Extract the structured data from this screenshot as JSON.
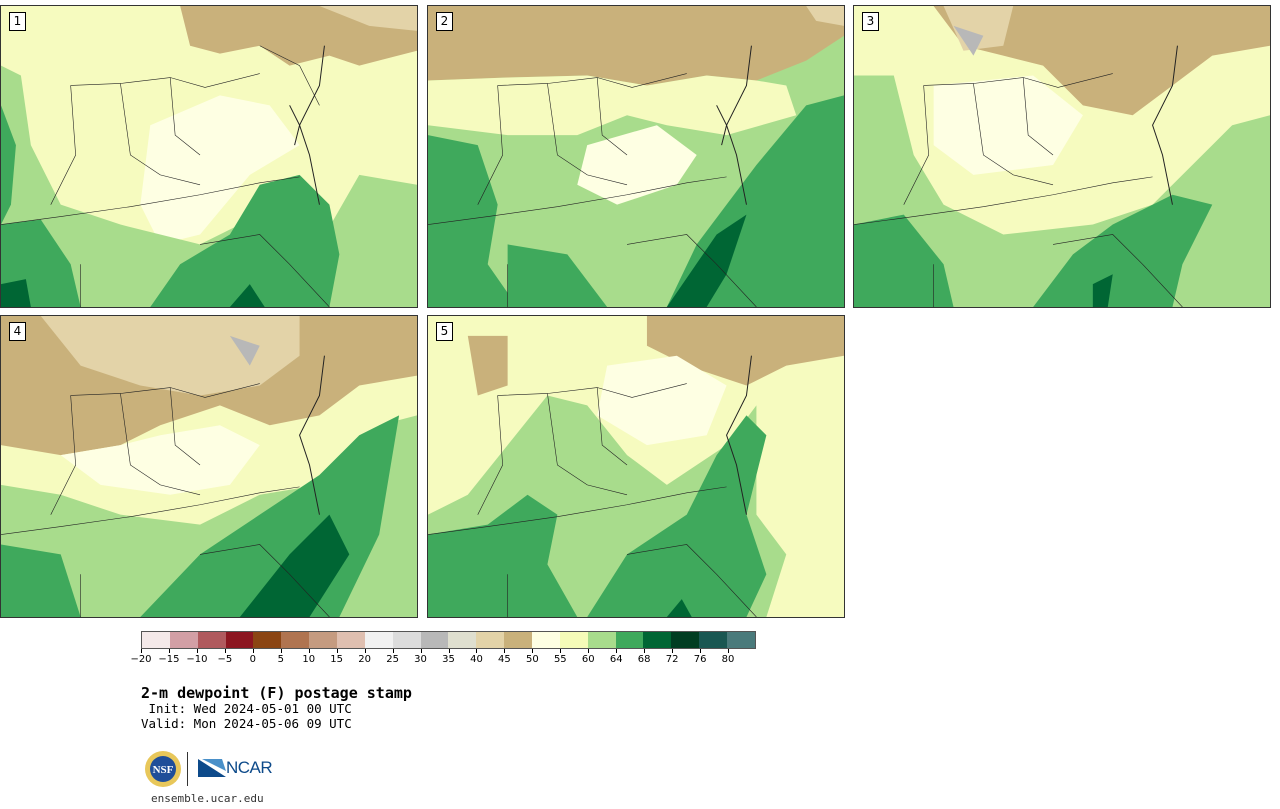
{
  "panels": [
    {
      "label": "1"
    },
    {
      "label": "2"
    },
    {
      "label": "3"
    },
    {
      "label": "4"
    },
    {
      "label": "5"
    }
  ],
  "colorbar": {
    "colors": [
      "#f4e9e9",
      "#d29fa5",
      "#b05a5e",
      "#8c1620",
      "#8b4513",
      "#b07450",
      "#c59b80",
      "#dfbfb0",
      "#f1f1f1",
      "#dcdcdc",
      "#b8b8b8",
      "#dfdfcf",
      "#e3d3a8",
      "#c9b17b",
      "#feffe3",
      "#f5fbb8",
      "#a8dc8c",
      "#3fa95c",
      "#006634",
      "#013d22",
      "#1a5752",
      "#4a7a7b"
    ],
    "tick_labels": [
      "−20",
      "−15",
      "−10",
      "−5",
      "0",
      "5",
      "10",
      "15",
      "20",
      "25",
      "30",
      "35",
      "40",
      "45",
      "50",
      "55",
      "60",
      "64",
      "68",
      "72",
      "76",
      "80"
    ]
  },
  "title": "2-m dewpoint (F) postage stamp",
  "init": " Init: Wed 2024-05-01 00 UTC",
  "valid": "Valid: Mon 2024-05-06 09 UTC",
  "logos": {
    "nsf_text": "NSF",
    "ncar_text": "NCAR"
  },
  "footer_url": "ensemble.ucar.edu"
}
